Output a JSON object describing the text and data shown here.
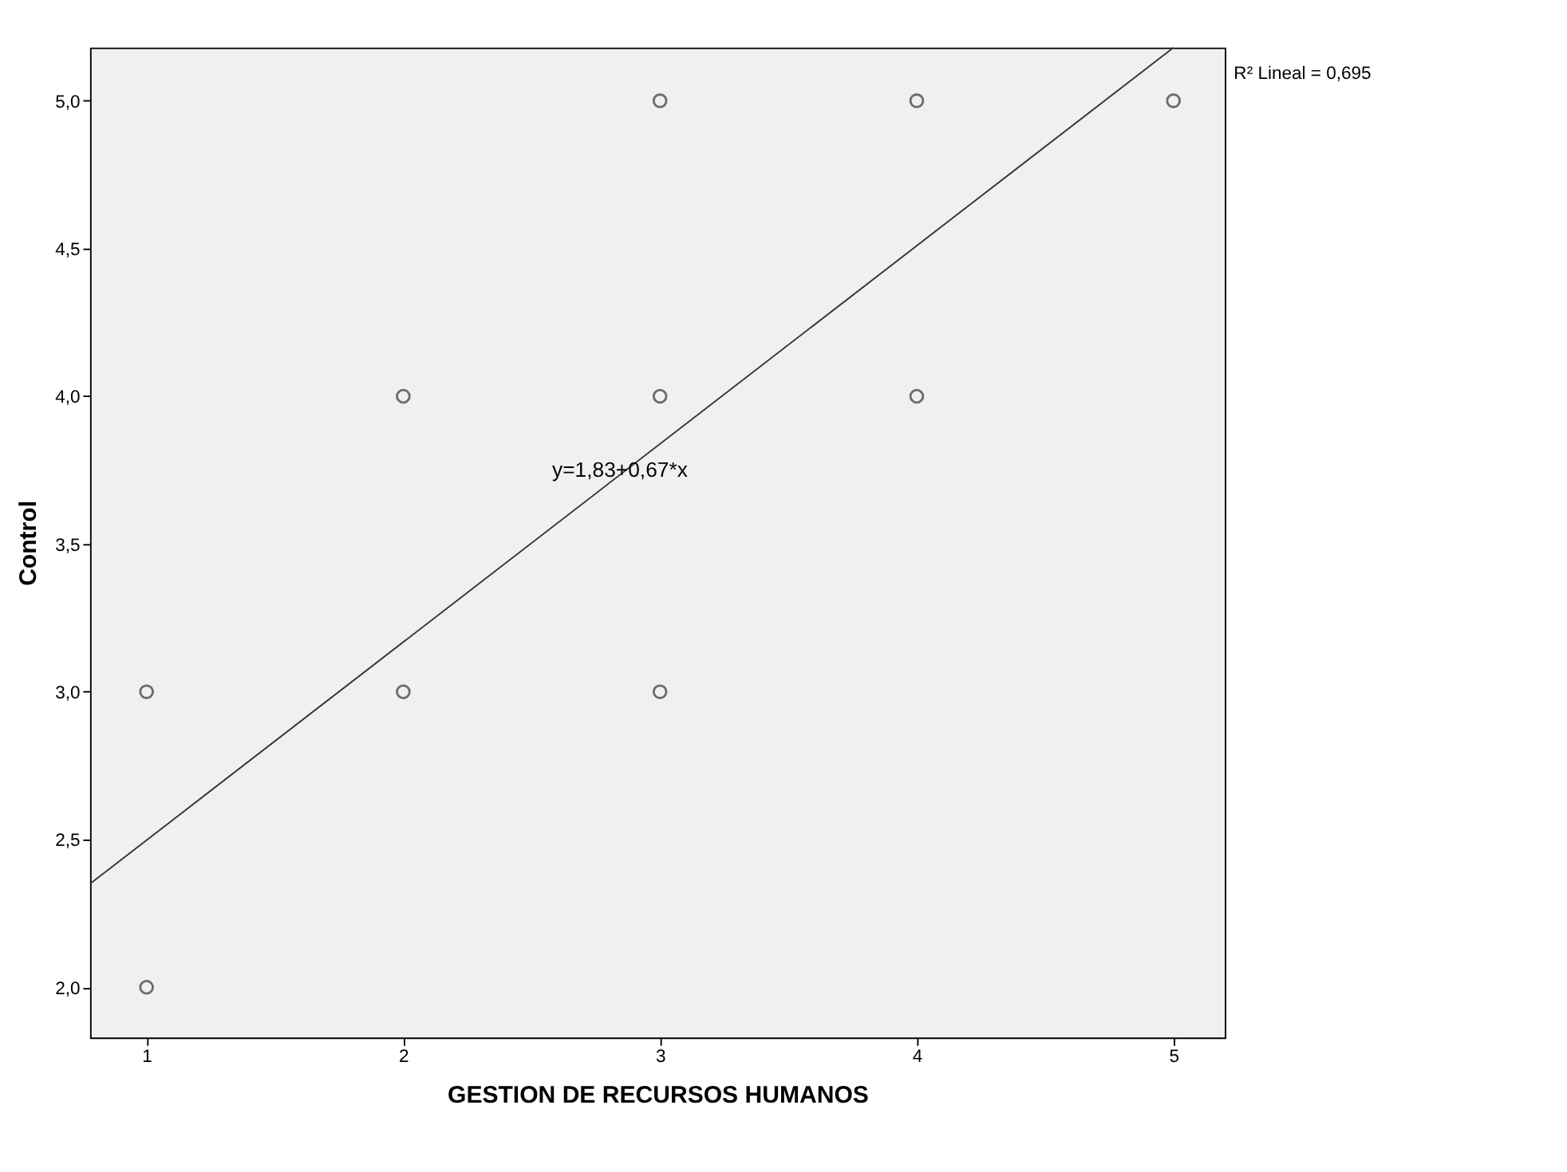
{
  "chart_data": {
    "type": "scatter",
    "xlabel": "GESTION DE RECURSOS HUMANOS",
    "ylabel": "Control",
    "series": [
      {
        "marker": "circle",
        "color": "#333333",
        "x": [
          1,
          1,
          2,
          2,
          3,
          3,
          3,
          4,
          4,
          5
        ],
        "values": [
          3,
          2,
          4,
          3,
          5,
          4,
          3,
          5,
          4,
          5
        ]
      },
      {
        "type": "line",
        "marker": "none",
        "color": "#333333",
        "x": [
          0.78,
          5.0
        ],
        "values": [
          2.35,
          5.18
        ]
      }
    ],
    "xlim": [
      0.78,
      5.2
    ],
    "xticks": [
      1,
      2,
      3,
      4,
      5
    ],
    "ylim": [
      1.83,
      5.18
    ],
    "yticks": [
      {
        "value": 2,
        "label": "2,0"
      },
      {
        "value": 2.5,
        "label": "2,5"
      },
      {
        "value": 3,
        "label": "3,0"
      },
      {
        "value": 3.5,
        "label": "3,5"
      },
      {
        "value": 4,
        "label": "4,0"
      },
      {
        "value": 4.5,
        "label": "4,5"
      },
      {
        "value": 5,
        "label": "5,0"
      }
    ],
    "annotations": [
      "R² Lineal = 0,695",
      "y=1,83+0,67*x"
    ],
    "grid": false
  }
}
